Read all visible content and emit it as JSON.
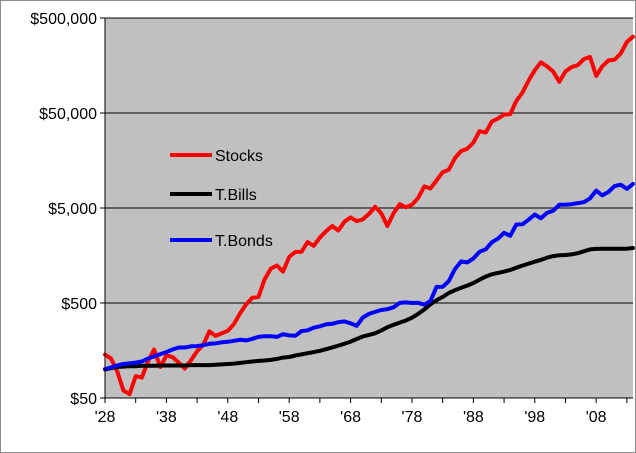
{
  "chart_data": {
    "type": "line",
    "title": "",
    "xlabel": "",
    "ylabel": "",
    "y_scale": "log",
    "ylim": [
      50,
      500000
    ],
    "xlim": [
      1928,
      2014
    ],
    "plot_background": "#C0C0C0",
    "grid": "horizontal",
    "legend_position": "inside-left",
    "x_tick_labels": [
      "'28",
      "'38",
      "'48",
      "'58",
      "'68",
      "'78",
      "'88",
      "'98",
      "'08"
    ],
    "x_tick_values": [
      1928,
      1938,
      1948,
      1958,
      1968,
      1978,
      1988,
      1998,
      2008
    ],
    "y_tick_labels": [
      "$50",
      "$500",
      "$5,000",
      "$50,000",
      "$500,000"
    ],
    "y_tick_values": [
      50,
      500,
      5000,
      50000,
      500000
    ],
    "x": [
      1928,
      1929,
      1930,
      1931,
      1932,
      1933,
      1934,
      1935,
      1936,
      1937,
      1938,
      1939,
      1940,
      1941,
      1942,
      1943,
      1944,
      1945,
      1946,
      1947,
      1948,
      1949,
      1950,
      1951,
      1952,
      1953,
      1954,
      1955,
      1956,
      1957,
      1958,
      1959,
      1960,
      1961,
      1962,
      1963,
      1964,
      1965,
      1966,
      1967,
      1968,
      1969,
      1970,
      1971,
      1972,
      1973,
      1974,
      1975,
      1976,
      1977,
      1978,
      1979,
      1980,
      1981,
      1982,
      1983,
      1984,
      1985,
      1986,
      1987,
      1988,
      1989,
      1990,
      1991,
      1992,
      1993,
      1994,
      1995,
      1996,
      1997,
      1998,
      1999,
      2000,
      2001,
      2002,
      2003,
      2004,
      2005,
      2006,
      2007,
      2008,
      2009,
      2010,
      2011,
      2012,
      2013,
      2014
    ],
    "series": [
      {
        "name": "Stocks",
        "color": "#FF0000",
        "values": [
          143,
          130,
          95,
          60,
          55,
          85,
          82,
          121,
          162,
          106,
          140,
          135,
          118,
          102,
          125,
          155,
          182,
          252,
          225,
          240,
          255,
          300,
          390,
          485,
          568,
          580,
          885,
          1150,
          1240,
          1070,
          1530,
          1720,
          1730,
          2190,
          2000,
          2440,
          2840,
          3230,
          2900,
          3580,
          3980,
          3640,
          3800,
          4330,
          5150,
          4390,
          3230,
          4420,
          5480,
          5080,
          5400,
          6390,
          8450,
          8030,
          9740,
          11900,
          12650,
          16780,
          19910,
          20940,
          24420,
          32150,
          31130,
          40580,
          43650,
          48050,
          48660,
          66890,
          82260,
          109690,
          141040,
          170710,
          155170,
          136740,
          106520,
          137070,
          151990,
          159460,
          184620,
          194770,
          122700,
          155140,
          178500,
          182260,
          211440,
          279880,
          317990
        ]
      },
      {
        "name": "T.Bills",
        "color": "#000000",
        "values": [
          100,
          103,
          106,
          107,
          108,
          108,
          109,
          109,
          109,
          110,
          110,
          110,
          110,
          110,
          111,
          111,
          111,
          111,
          112,
          113,
          114,
          115,
          117,
          119,
          121,
          123,
          124,
          126,
          129,
          133,
          135,
          140,
          144,
          148,
          152,
          157,
          163,
          170,
          178,
          186,
          196,
          209,
          222,
          231,
          240,
          257,
          278,
          295,
          311,
          327,
          350,
          384,
          427,
          484,
          534,
          579,
          637,
          682,
          723,
          763,
          811,
          880,
          948,
          1002,
          1037,
          1069,
          1113,
          1176,
          1237,
          1299,
          1361,
          1421,
          1499,
          1560,
          1587,
          1602,
          1624,
          1673,
          1752,
          1831,
          1857,
          1859,
          1861,
          1862,
          1863,
          1864,
          1895
        ]
      },
      {
        "name": "T.Bonds",
        "color": "#0000FF",
        "values": [
          101,
          105,
          110,
          114,
          116,
          118,
          121,
          130,
          137,
          145,
          152,
          162,
          170,
          170,
          175,
          176,
          180,
          186,
          188,
          193,
          195,
          200,
          205,
          202,
          210,
          220,
          223,
          223,
          220,
          235,
          228,
          226,
          253,
          258,
          275,
          284,
          298,
          302,
          314,
          320,
          306,
          288,
          352,
          384,
          403,
          422,
          430,
          452,
          501,
          507,
          500,
          503,
          480,
          525,
          738,
          740,
          850,
          1139,
          1367,
          1338,
          1471,
          1729,
          1837,
          2175,
          2376,
          2741,
          2546,
          3349,
          3368,
          3768,
          4273,
          3895,
          4441,
          4683,
          5406,
          5431,
          5478,
          5636,
          5749,
          6309,
          7628,
          6791,
          7368,
          8500,
          8794,
          7947,
          8969
        ]
      }
    ]
  }
}
